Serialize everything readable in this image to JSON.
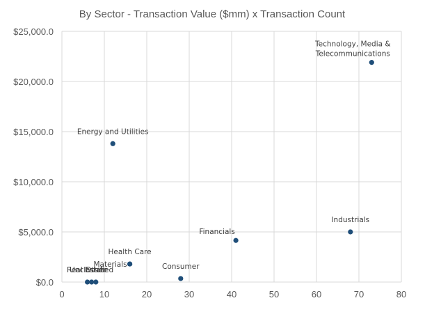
{
  "chart_data": {
    "type": "scatter",
    "title": "By Sector - Transaction Value ($mm) x Transaction Count",
    "xlabel": "",
    "ylabel": "",
    "xlim": [
      0,
      80
    ],
    "ylim": [
      0,
      25000
    ],
    "x_ticks": [
      0,
      10,
      20,
      30,
      40,
      50,
      60,
      70,
      80
    ],
    "y_ticks": [
      0,
      5000,
      10000,
      15000,
      20000,
      25000
    ],
    "x_tick_labels": [
      "0",
      "10",
      "20",
      "30",
      "40",
      "50",
      "60",
      "70",
      "80"
    ],
    "y_tick_labels": [
      "$0.0",
      "$5,000.0",
      "$10,000.0",
      "$15,000.0",
      "$20,000.0",
      "$25,000.0"
    ],
    "grid": true,
    "marker_color": "#1f4e79",
    "points": [
      {
        "label": "Technology, Media &\nTelecommunications",
        "x": 73,
        "y": 21900,
        "label_pos": "above-left"
      },
      {
        "label": "Energy and Utilities",
        "x": 12,
        "y": 13800,
        "label_pos": "above"
      },
      {
        "label": "Industrials",
        "x": 68,
        "y": 5000,
        "label_pos": "above"
      },
      {
        "label": "Financials",
        "x": 41,
        "y": 4150,
        "label_pos": "above-left"
      },
      {
        "label": "Health Care",
        "x": 16,
        "y": 1800,
        "label_pos": "above"
      },
      {
        "label": "Materials",
        "x": 16,
        "y": 1800,
        "label_pos": "left"
      },
      {
        "label": "Consumer",
        "x": 28,
        "y": 350,
        "label_pos": "above"
      },
      {
        "label": "Real Estate",
        "x": 6,
        "y": 0,
        "label_pos": "above"
      },
      {
        "label": "Unclassified",
        "x": 7,
        "y": 0,
        "label_pos": "above"
      },
      {
        "label": "Other",
        "x": 8,
        "y": 0,
        "label_pos": "above"
      }
    ]
  }
}
